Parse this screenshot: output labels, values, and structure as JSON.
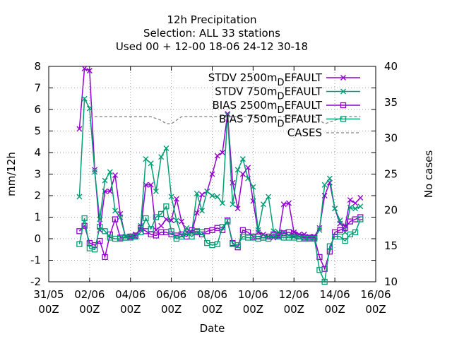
{
  "chart_data": {
    "type": "line",
    "title_lines": [
      "12h Precipitation",
      "Selection: ALL      33 stations",
      "Used  00 + 12-00 18-06 24-12 30-18"
    ],
    "xlabel": "Date",
    "ylabel": "mm/12h",
    "y2label": "No cases",
    "x_ticks": [
      {
        "top": "31/05",
        "bottom": "00Z"
      },
      {
        "top": "02/06",
        "bottom": "00Z"
      },
      {
        "top": "04/06",
        "bottom": "00Z"
      },
      {
        "top": "06/06",
        "bottom": "00Z"
      },
      {
        "top": "08/06",
        "bottom": "00Z"
      },
      {
        "top": "10/06",
        "bottom": "00Z"
      },
      {
        "top": "12/06",
        "bottom": "00Z"
      },
      {
        "top": "14/06",
        "bottom": "00Z"
      },
      {
        "top": "16/06",
        "bottom": "00Z"
      }
    ],
    "xlim": [
      0,
      16
    ],
    "ylim": [
      -2,
      8
    ],
    "y_ticks": [
      -2,
      -1,
      0,
      1,
      2,
      3,
      4,
      5,
      6,
      7,
      8
    ],
    "y2lim": [
      10,
      40
    ],
    "y2_ticks": [
      10,
      15,
      20,
      25,
      30,
      35,
      40
    ],
    "grid": true,
    "legend_position": "top-right",
    "series": [
      {
        "name": "STDV 2500m",
        "subscript": "D",
        "suffix": "EFAULT",
        "color": "#9400d3",
        "marker": "x",
        "axis": "y",
        "x": [
          1.5,
          1.75,
          2,
          2.25,
          2.5,
          2.75,
          3,
          3.25,
          3.5,
          3.75,
          4,
          4.25,
          4.5,
          4.75,
          5,
          5.25,
          5.5,
          5.75,
          6,
          6.25,
          6.5,
          6.75,
          7,
          7.25,
          7.5,
          7.75,
          8,
          8.25,
          8.5,
          8.75,
          9,
          9.25,
          9.5,
          9.75,
          10,
          10.25,
          10.5,
          10.75,
          11,
          11.25,
          11.5,
          11.75,
          12,
          12.25,
          12.5,
          12.75,
          13,
          13.25,
          13.5,
          13.75,
          14,
          14.25,
          14.5,
          14.75,
          15,
          15.25
        ],
        "values": [
          5.1,
          7.9,
          7.8,
          3.2,
          0.4,
          2.2,
          2.2,
          2.95,
          1.15,
          0.1,
          0.1,
          0.2,
          0.4,
          2.5,
          2.5,
          0.4,
          0.6,
          0.9,
          0.85,
          1.85,
          0.8,
          0.3,
          0.3,
          1.2,
          2.05,
          2.2,
          3.0,
          3.85,
          4.0,
          5.8,
          2.6,
          1.4,
          3.0,
          3.3,
          1.75,
          0.3,
          0.2,
          0.1,
          0.05,
          0.1,
          1.6,
          1.65,
          0.3,
          0.2,
          0.2,
          0.1,
          0.1,
          0.5,
          2.0,
          2.6,
          1.4,
          0.7,
          0.6,
          1.8,
          1.65,
          1.9
        ]
      },
      {
        "name": "STDV 750m",
        "subscript": "D",
        "suffix": "EFAULT",
        "color": "#009e73",
        "marker": "x",
        "axis": "y",
        "x": [
          1.5,
          1.75,
          2,
          2.25,
          2.5,
          2.75,
          3,
          3.25,
          3.5,
          3.75,
          4,
          4.25,
          4.5,
          4.75,
          5,
          5.25,
          5.5,
          5.75,
          6,
          6.25,
          6.5,
          6.75,
          7,
          7.25,
          7.5,
          7.75,
          8,
          8.25,
          8.5,
          8.75,
          9,
          9.25,
          9.5,
          9.75,
          10,
          10.25,
          10.5,
          10.75,
          11,
          11.25,
          11.5,
          11.75,
          12,
          12.25,
          12.5,
          12.75,
          13,
          13.25,
          13.5,
          13.75,
          14,
          14.25,
          14.5,
          14.75,
          15,
          15.25
        ],
        "values": [
          1.95,
          6.5,
          6.05,
          3.1,
          0.9,
          2.7,
          3.1,
          1.3,
          1.0,
          0.1,
          0.05,
          0.1,
          0.6,
          3.7,
          3.5,
          2.2,
          3.8,
          4.2,
          1.95,
          0.85,
          0.15,
          0.5,
          0.3,
          2.1,
          1.3,
          2.2,
          2.0,
          1.95,
          1.65,
          5.75,
          1.6,
          3.2,
          3.7,
          2.8,
          2.4,
          0.4,
          1.6,
          1.95,
          0.35,
          0.3,
          0.3,
          0.15,
          0.1,
          0.1,
          0.05,
          0.05,
          0.05,
          0.4,
          2.5,
          2.8,
          1.4,
          0.85,
          0.3,
          1.45,
          1.4,
          1.5
        ]
      },
      {
        "name": "BIAS 2500m",
        "subscript": "D",
        "suffix": "EFAULT",
        "color": "#9400d3",
        "marker": "square",
        "axis": "y",
        "x": [
          1.5,
          1.75,
          2,
          2.25,
          2.5,
          2.75,
          3,
          3.25,
          3.5,
          3.75,
          4,
          4.25,
          4.5,
          4.75,
          5,
          5.25,
          5.5,
          5.75,
          6,
          6.25,
          6.5,
          6.75,
          7,
          7.25,
          7.5,
          7.75,
          8,
          8.25,
          8.5,
          8.75,
          9,
          9.25,
          9.5,
          9.75,
          10,
          10.25,
          10.5,
          10.75,
          11,
          11.25,
          11.5,
          11.75,
          12,
          12.25,
          12.5,
          12.75,
          13,
          13.25,
          13.5,
          13.75,
          14,
          14.25,
          14.5,
          14.75,
          15,
          15.25
        ],
        "values": [
          0.35,
          0.6,
          -0.2,
          -0.3,
          -0.1,
          -0.85,
          0.2,
          0.9,
          0.05,
          0.05,
          0.1,
          0.15,
          0.5,
          0.35,
          0.2,
          0.15,
          0.3,
          0.3,
          0.2,
          0.15,
          0.2,
          0.1,
          0.4,
          0.3,
          0.2,
          0.35,
          0.4,
          0.5,
          0.4,
          0.85,
          -0.2,
          -0.4,
          0.4,
          0.3,
          0.1,
          0.1,
          0.05,
          0.1,
          0.2,
          0.15,
          0.25,
          0.3,
          0.2,
          0.1,
          0.05,
          0.05,
          0.05,
          -0.85,
          -1.4,
          -0.6,
          0.3,
          0.4,
          0.5,
          0.8,
          0.9,
          1.0
        ]
      },
      {
        "name": "BIAS 750m",
        "subscript": "D",
        "suffix": "EFAULT",
        "color": "#009e73",
        "marker": "square",
        "axis": "y",
        "x": [
          1.5,
          1.75,
          2,
          2.25,
          2.5,
          2.75,
          3,
          3.25,
          3.5,
          3.75,
          4,
          4.25,
          4.5,
          4.75,
          5,
          5.25,
          5.5,
          5.75,
          6,
          6.25,
          6.5,
          6.75,
          7,
          7.25,
          7.5,
          7.75,
          8,
          8.25,
          8.5,
          8.75,
          9,
          9.25,
          9.5,
          9.75,
          10,
          10.25,
          10.5,
          10.75,
          11,
          11.25,
          11.5,
          11.75,
          12,
          12.25,
          12.5,
          12.75,
          13,
          13.25,
          13.5,
          13.75,
          14,
          14.25,
          14.5,
          14.75,
          15,
          15.25
        ],
        "values": [
          -0.25,
          0.95,
          -0.45,
          -0.5,
          0.55,
          0.35,
          0.05,
          0.0,
          0.0,
          0.05,
          0.05,
          0.1,
          0.3,
          0.95,
          0.45,
          1.0,
          1.15,
          1.5,
          0.35,
          0.0,
          0.1,
          0.3,
          0.1,
          0.35,
          0.3,
          -0.2,
          -0.3,
          -0.25,
          0.55,
          0.8,
          -0.25,
          -0.3,
          0.1,
          0.05,
          0.05,
          0.0,
          0.05,
          0.0,
          0.15,
          0.1,
          0.05,
          0.05,
          0.05,
          0.0,
          0.0,
          0.0,
          0.0,
          -1.45,
          -2.0,
          -0.35,
          0.1,
          0.1,
          -0.1,
          0.2,
          0.3,
          0.9
        ]
      },
      {
        "name": "CASES",
        "subscript": "",
        "suffix": "",
        "color": "#888888",
        "marker": "none",
        "dash": true,
        "axis": "y2",
        "x": [
          2.0,
          5.0,
          5.5,
          5.75,
          6.0,
          6.5,
          10.0,
          12.0,
          12.5,
          13.0,
          13.5,
          14.5,
          15.0,
          15.25
        ],
        "values": [
          33,
          33,
          32.5,
          32,
          32,
          33,
          33,
          33,
          33,
          33,
          32,
          33,
          33,
          33
        ]
      }
    ]
  }
}
